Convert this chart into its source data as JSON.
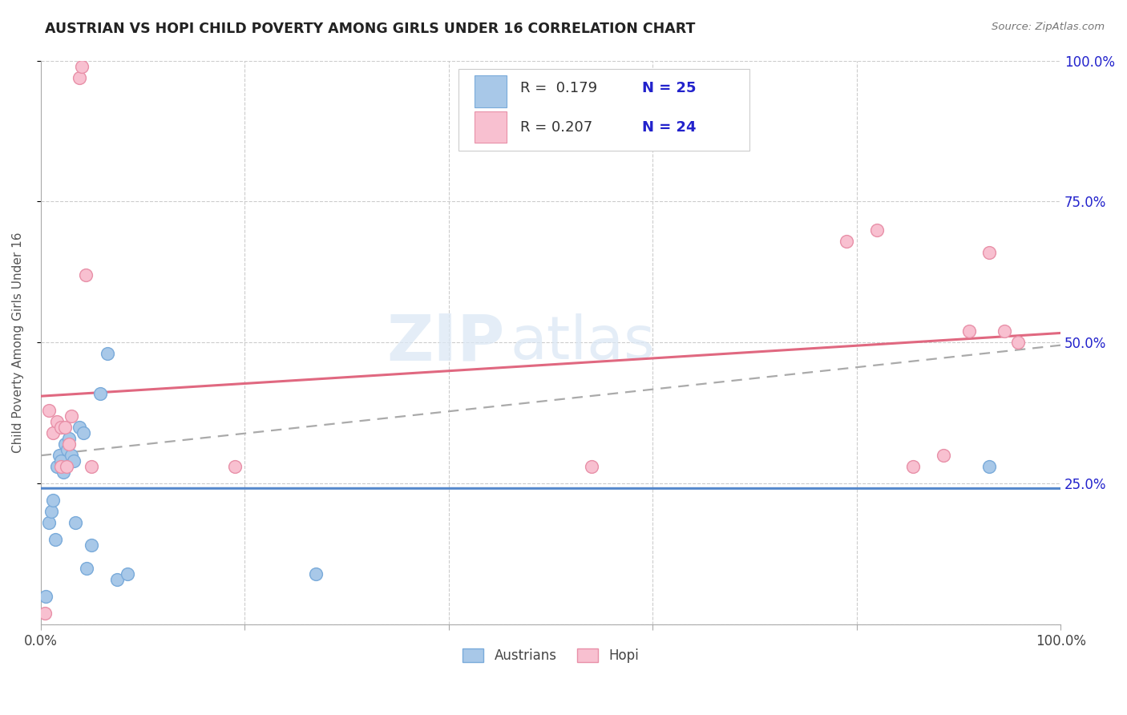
{
  "title": "AUSTRIAN VS HOPI CHILD POVERTY AMONG GIRLS UNDER 16 CORRELATION CHART",
  "source": "Source: ZipAtlas.com",
  "ylabel": "Child Poverty Among Girls Under 16",
  "background_color": "#ffffff",
  "watermark_text": "ZIP",
  "watermark_text2": "atlas",
  "austrians": {
    "label": "Austrians",
    "scatter_color": "#a8c8e8",
    "edge_color": "#7aabda",
    "line_color": "#5588cc",
    "R": 0.179,
    "N": 25,
    "x": [
      0.005,
      0.008,
      0.01,
      0.012,
      0.014,
      0.016,
      0.018,
      0.02,
      0.022,
      0.024,
      0.026,
      0.028,
      0.03,
      0.032,
      0.034,
      0.038,
      0.042,
      0.045,
      0.05,
      0.058,
      0.065,
      0.075,
      0.085,
      0.27,
      0.93
    ],
    "y": [
      0.05,
      0.18,
      0.2,
      0.22,
      0.15,
      0.28,
      0.3,
      0.29,
      0.27,
      0.32,
      0.31,
      0.33,
      0.3,
      0.29,
      0.18,
      0.35,
      0.34,
      0.1,
      0.14,
      0.41,
      0.48,
      0.08,
      0.09,
      0.09,
      0.28
    ]
  },
  "hopi": {
    "label": "Hopi",
    "scatter_color": "#f8c0d0",
    "edge_color": "#e890a8",
    "line_color": "#e06880",
    "R": 0.207,
    "N": 24,
    "x": [
      0.004,
      0.008,
      0.012,
      0.016,
      0.02,
      0.024,
      0.028,
      0.03,
      0.038,
      0.04,
      0.044,
      0.19,
      0.54,
      0.79,
      0.82,
      0.855,
      0.885,
      0.91,
      0.93,
      0.945,
      0.958,
      0.02,
      0.025,
      0.05
    ],
    "y": [
      0.02,
      0.38,
      0.34,
      0.36,
      0.35,
      0.35,
      0.32,
      0.37,
      0.97,
      0.99,
      0.62,
      0.28,
      0.28,
      0.68,
      0.7,
      0.28,
      0.3,
      0.52,
      0.66,
      0.52,
      0.5,
      0.28,
      0.28,
      0.28
    ]
  },
  "xlim": [
    0.0,
    1.0
  ],
  "ylim": [
    0.0,
    1.0
  ],
  "xtick_positions": [
    0.0,
    0.2,
    0.4,
    0.6,
    0.8,
    1.0
  ],
  "xtick_labels_left": [
    "0.0%",
    "",
    "",
    "",
    "",
    "100.0%"
  ],
  "ytick_positions": [
    0.25,
    0.5,
    0.75,
    1.0
  ],
  "ytick_labels": [
    "25.0%",
    "50.0%",
    "75.0%",
    "100.0%"
  ],
  "grid_color": "#cccccc",
  "dashed_line_color": "#aaaaaa",
  "legend_text_color": "#2222cc",
  "legend_label_color": "#333333"
}
